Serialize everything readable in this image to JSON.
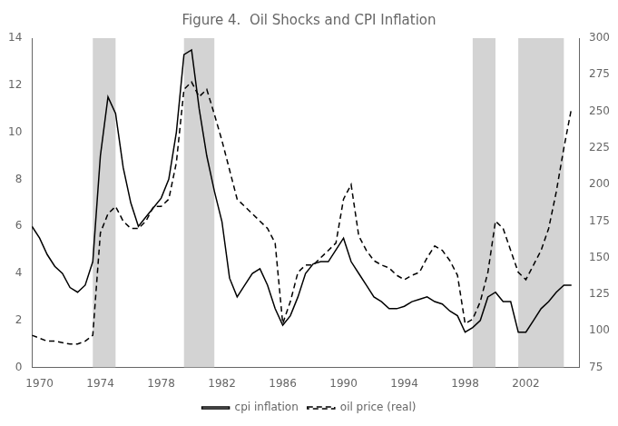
{
  "chart_data": {
    "type": "line",
    "title": "Figure 4.  Oil Shocks and CPI Inflation",
    "x": [
      1969.5,
      1970,
      1970.5,
      1971,
      1971.5,
      1972,
      1972.5,
      1973,
      1973.5,
      1974,
      1974.5,
      1975,
      1975.5,
      1976,
      1976.5,
      1977,
      1977.5,
      1978,
      1978.5,
      1979,
      1979.5,
      1980,
      1980.5,
      1981,
      1981.5,
      1982,
      1982.5,
      1983,
      1983.5,
      1984,
      1984.5,
      1985,
      1985.5,
      1986,
      1986.5,
      1987,
      1987.5,
      1988,
      1988.5,
      1989,
      1989.5,
      1990,
      1990.5,
      1991,
      1991.5,
      1992,
      1992.5,
      1993,
      1993.5,
      1994,
      1994.5,
      1995,
      1995.5,
      1996,
      1996.5,
      1997,
      1997.5,
      1998,
      1998.5,
      1999,
      1999.5,
      2000,
      2000.5,
      2001,
      2001.5,
      2002,
      2002.5,
      2003,
      2003.5,
      2004,
      2004.5,
      2005
    ],
    "series": [
      {
        "name": "cpi inflation",
        "color": "#000000",
        "line_style": "solid",
        "values": [
          6.0,
          5.5,
          4.8,
          4.3,
          4.0,
          3.4,
          3.2,
          3.5,
          4.5,
          9.0,
          11.5,
          10.8,
          8.5,
          7.0,
          6.0,
          6.4,
          6.8,
          7.2,
          8.0,
          10.0,
          13.3,
          13.5,
          11.0,
          9.0,
          7.5,
          6.2,
          3.8,
          3.0,
          3.5,
          4.0,
          4.2,
          3.5,
          2.5,
          1.8,
          2.2,
          3.0,
          4.0,
          4.4,
          4.5,
          4.5,
          5.0,
          5.5,
          4.5,
          4.0,
          3.5,
          3.0,
          2.8,
          2.5,
          2.5,
          2.6,
          2.8,
          2.9,
          3.0,
          2.8,
          2.7,
          2.4,
          2.2,
          1.5,
          1.7,
          2.0,
          3.0,
          3.2,
          2.8,
          2.8,
          1.5,
          1.5,
          2.0,
          2.5,
          2.8,
          3.2,
          3.5,
          3.5
        ]
      },
      {
        "name": "oil price (real)",
        "color": "#000000",
        "line_style": "dashed",
        "axis": "y2",
        "values": [
          97,
          95,
          93,
          93,
          92,
          91,
          91,
          93,
          97,
          167,
          180,
          185,
          175,
          170,
          170,
          175,
          185,
          185,
          190,
          215,
          265,
          270,
          260,
          265,
          248,
          230,
          210,
          190,
          185,
          180,
          175,
          170,
          160,
          105,
          120,
          140,
          145,
          145,
          150,
          155,
          160,
          190,
          200,
          165,
          155,
          148,
          145,
          143,
          138,
          135,
          138,
          140,
          150,
          158,
          155,
          148,
          138,
          105,
          108,
          120,
          140,
          175,
          170,
          155,
          140,
          135,
          145,
          155,
          170,
          195,
          225,
          252
        ]
      }
    ],
    "xlim": [
      1969.5,
      2005.5
    ],
    "xticks": [
      1970,
      1974,
      1978,
      1982,
      1986,
      1990,
      1994,
      1998,
      2002
    ],
    "ylim": [
      0,
      14
    ],
    "yticks": [
      0,
      2,
      4,
      6,
      8,
      10,
      12,
      14
    ],
    "y2lim": [
      75,
      300
    ],
    "y2ticks": [
      75,
      100,
      125,
      150,
      175,
      200,
      225,
      250,
      275,
      300
    ],
    "shaded_regions": {
      "color": "#d3d3d3",
      "spans": [
        [
          1973.5,
          1975.0
        ],
        [
          1979.5,
          1981.5
        ],
        [
          1998.5,
          2000.0
        ],
        [
          2001.5,
          2004.5
        ]
      ]
    },
    "grid": false,
    "legend": "bottom"
  }
}
